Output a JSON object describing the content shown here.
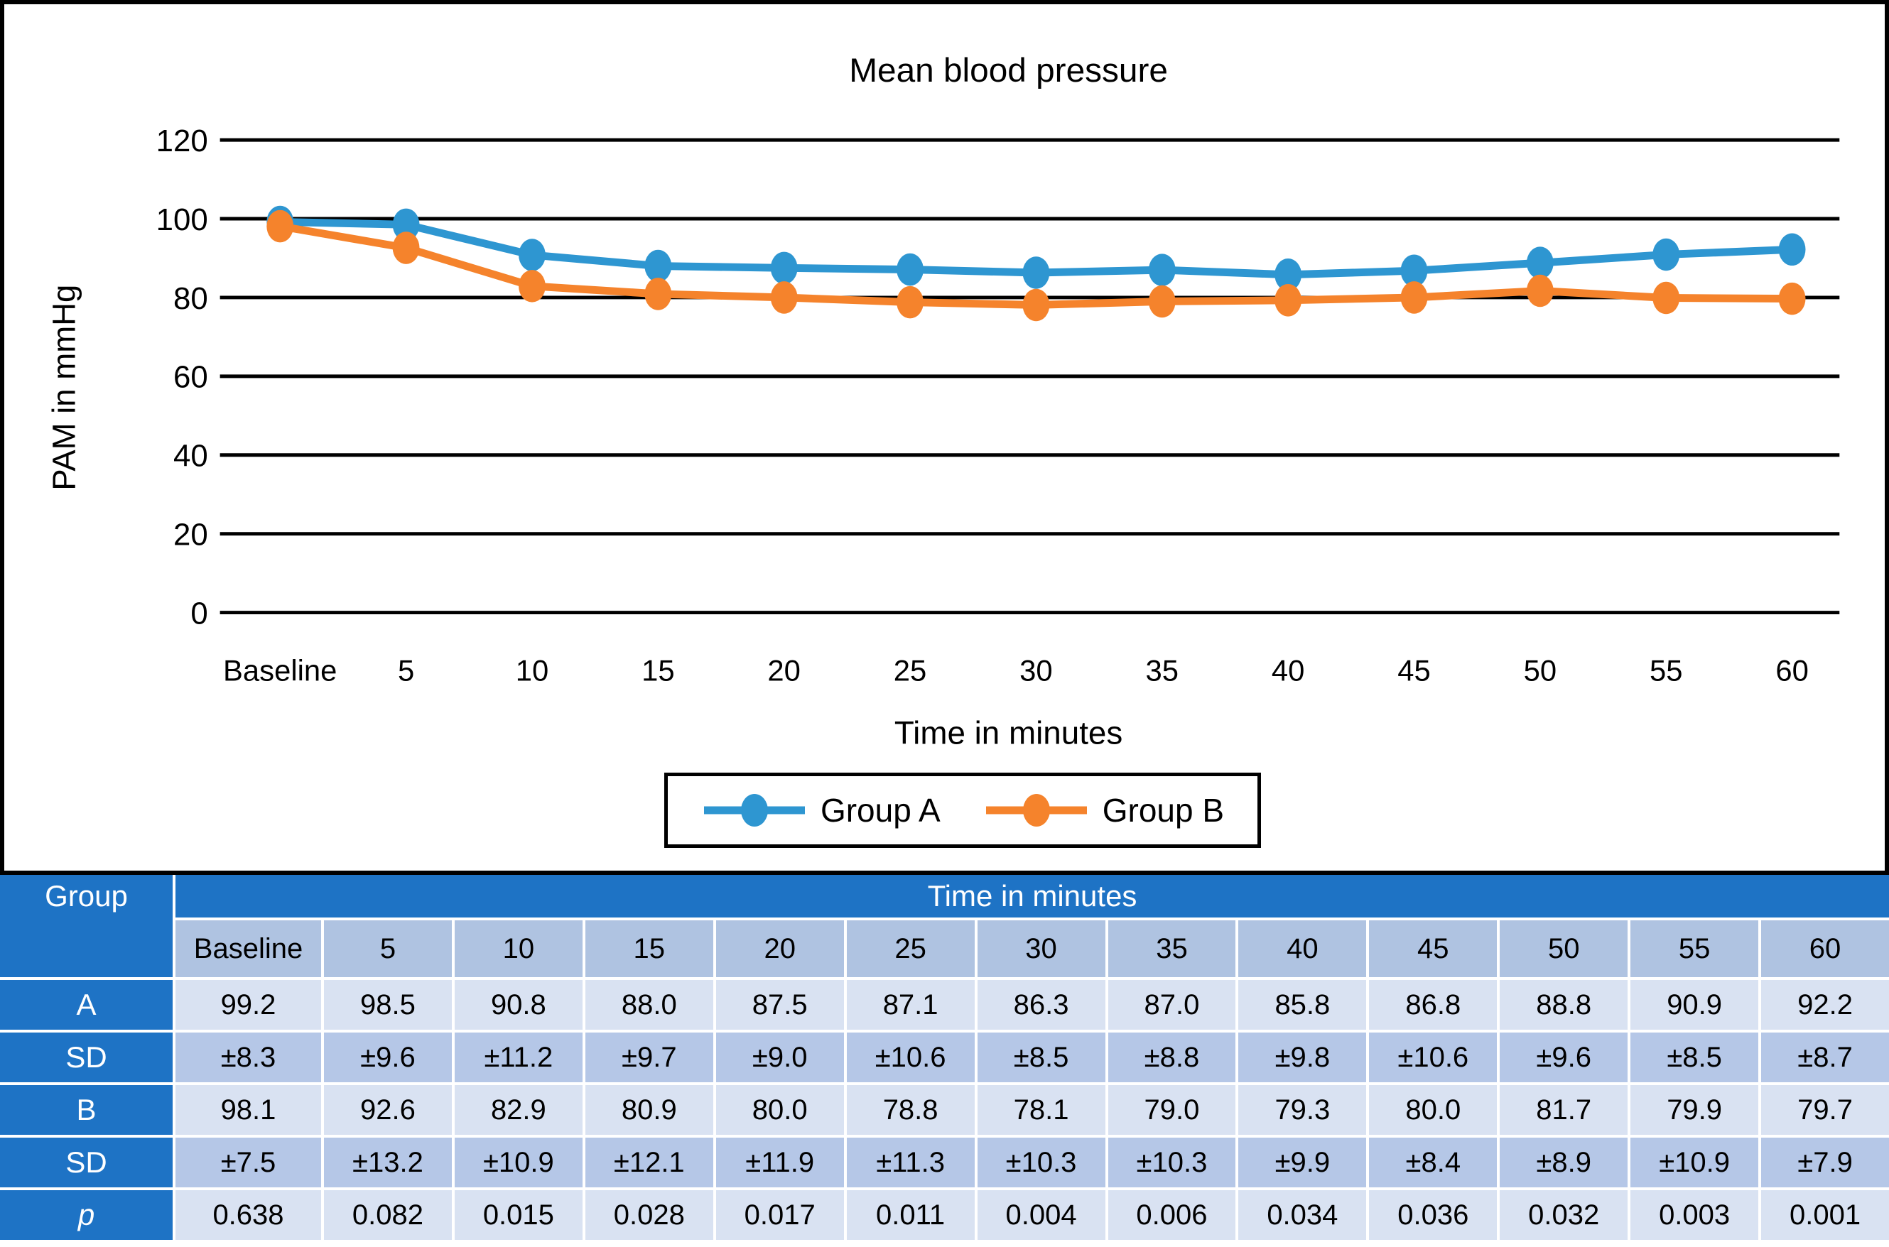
{
  "chart": {
    "title": "Mean blood pressure",
    "y_axis_label": "PAM in mmHg",
    "x_axis_label": "Time in minutes"
  },
  "chart_data": {
    "type": "line",
    "categories": [
      "Baseline",
      "5",
      "10",
      "15",
      "20",
      "25",
      "30",
      "35",
      "40",
      "45",
      "50",
      "55",
      "60"
    ],
    "series": [
      {
        "name": "Group A",
        "color": "#2E96D1",
        "values": [
          99.2,
          98.5,
          90.8,
          88.0,
          87.5,
          87.1,
          86.3,
          87.0,
          85.8,
          86.8,
          88.8,
          90.9,
          92.2
        ]
      },
      {
        "name": "Group B",
        "color": "#F5832C",
        "values": [
          98.1,
          92.6,
          82.9,
          80.9,
          80.0,
          78.8,
          78.1,
          79.0,
          79.3,
          80.0,
          81.7,
          79.9,
          79.7
        ]
      }
    ],
    "title": "Mean blood pressure",
    "xlabel": "Time in minutes",
    "ylabel": "PAM in mmHg",
    "ylim": [
      0,
      120
    ],
    "yticks": [
      0,
      20,
      40,
      60,
      80,
      100,
      120
    ],
    "grid": true,
    "grid_color": "#000000",
    "legend_position": "bottom",
    "marker": "ellipse"
  },
  "table": {
    "corner_header": "Group",
    "span_header": "Time in minutes",
    "column_headers": [
      "Baseline",
      "5",
      "10",
      "15",
      "20",
      "25",
      "30",
      "35",
      "40",
      "45",
      "50",
      "55",
      "60"
    ],
    "rows": [
      {
        "label": "A",
        "italic": false,
        "shade": "light",
        "values": [
          "99.2",
          "98.5",
          "90.8",
          "88.0",
          "87.5",
          "87.1",
          "86.3",
          "87.0",
          "85.8",
          "86.8",
          "88.8",
          "90.9",
          "92.2"
        ]
      },
      {
        "label": "SD",
        "italic": false,
        "shade": "medium",
        "values": [
          "±8.3",
          "±9.6",
          "±11.2",
          "±9.7",
          "±9.0",
          "±10.6",
          "±8.5",
          "±8.8",
          "±9.8",
          "±10.6",
          "±9.6",
          "±8.5",
          "±8.7"
        ]
      },
      {
        "label": "B",
        "italic": false,
        "shade": "light",
        "values": [
          "98.1",
          "92.6",
          "82.9",
          "80.9",
          "80.0",
          "78.8",
          "78.1",
          "79.0",
          "79.3",
          "80.0",
          "81.7",
          "79.9",
          "79.7"
        ]
      },
      {
        "label": "SD",
        "italic": false,
        "shade": "medium",
        "values": [
          "±7.5",
          "±13.2",
          "±10.9",
          "±12.1",
          "±11.9",
          "±11.3",
          "±10.3",
          "±10.3",
          "±9.9",
          "±8.4",
          "±8.9",
          "±10.9",
          "±7.9"
        ]
      },
      {
        "label": "p",
        "italic": true,
        "shade": "light",
        "values": [
          "0.638",
          "0.082",
          "0.015",
          "0.028",
          "0.017",
          "0.011",
          "0.004",
          "0.006",
          "0.034",
          "0.036",
          "0.032",
          "0.003",
          "0.001"
        ]
      }
    ],
    "colors": {
      "header_blue": "#1E73C5",
      "header2_blue": "#AFC3E1",
      "light_cell": "#D9E2F2",
      "medium_cell": "#B5C7E7"
    }
  }
}
